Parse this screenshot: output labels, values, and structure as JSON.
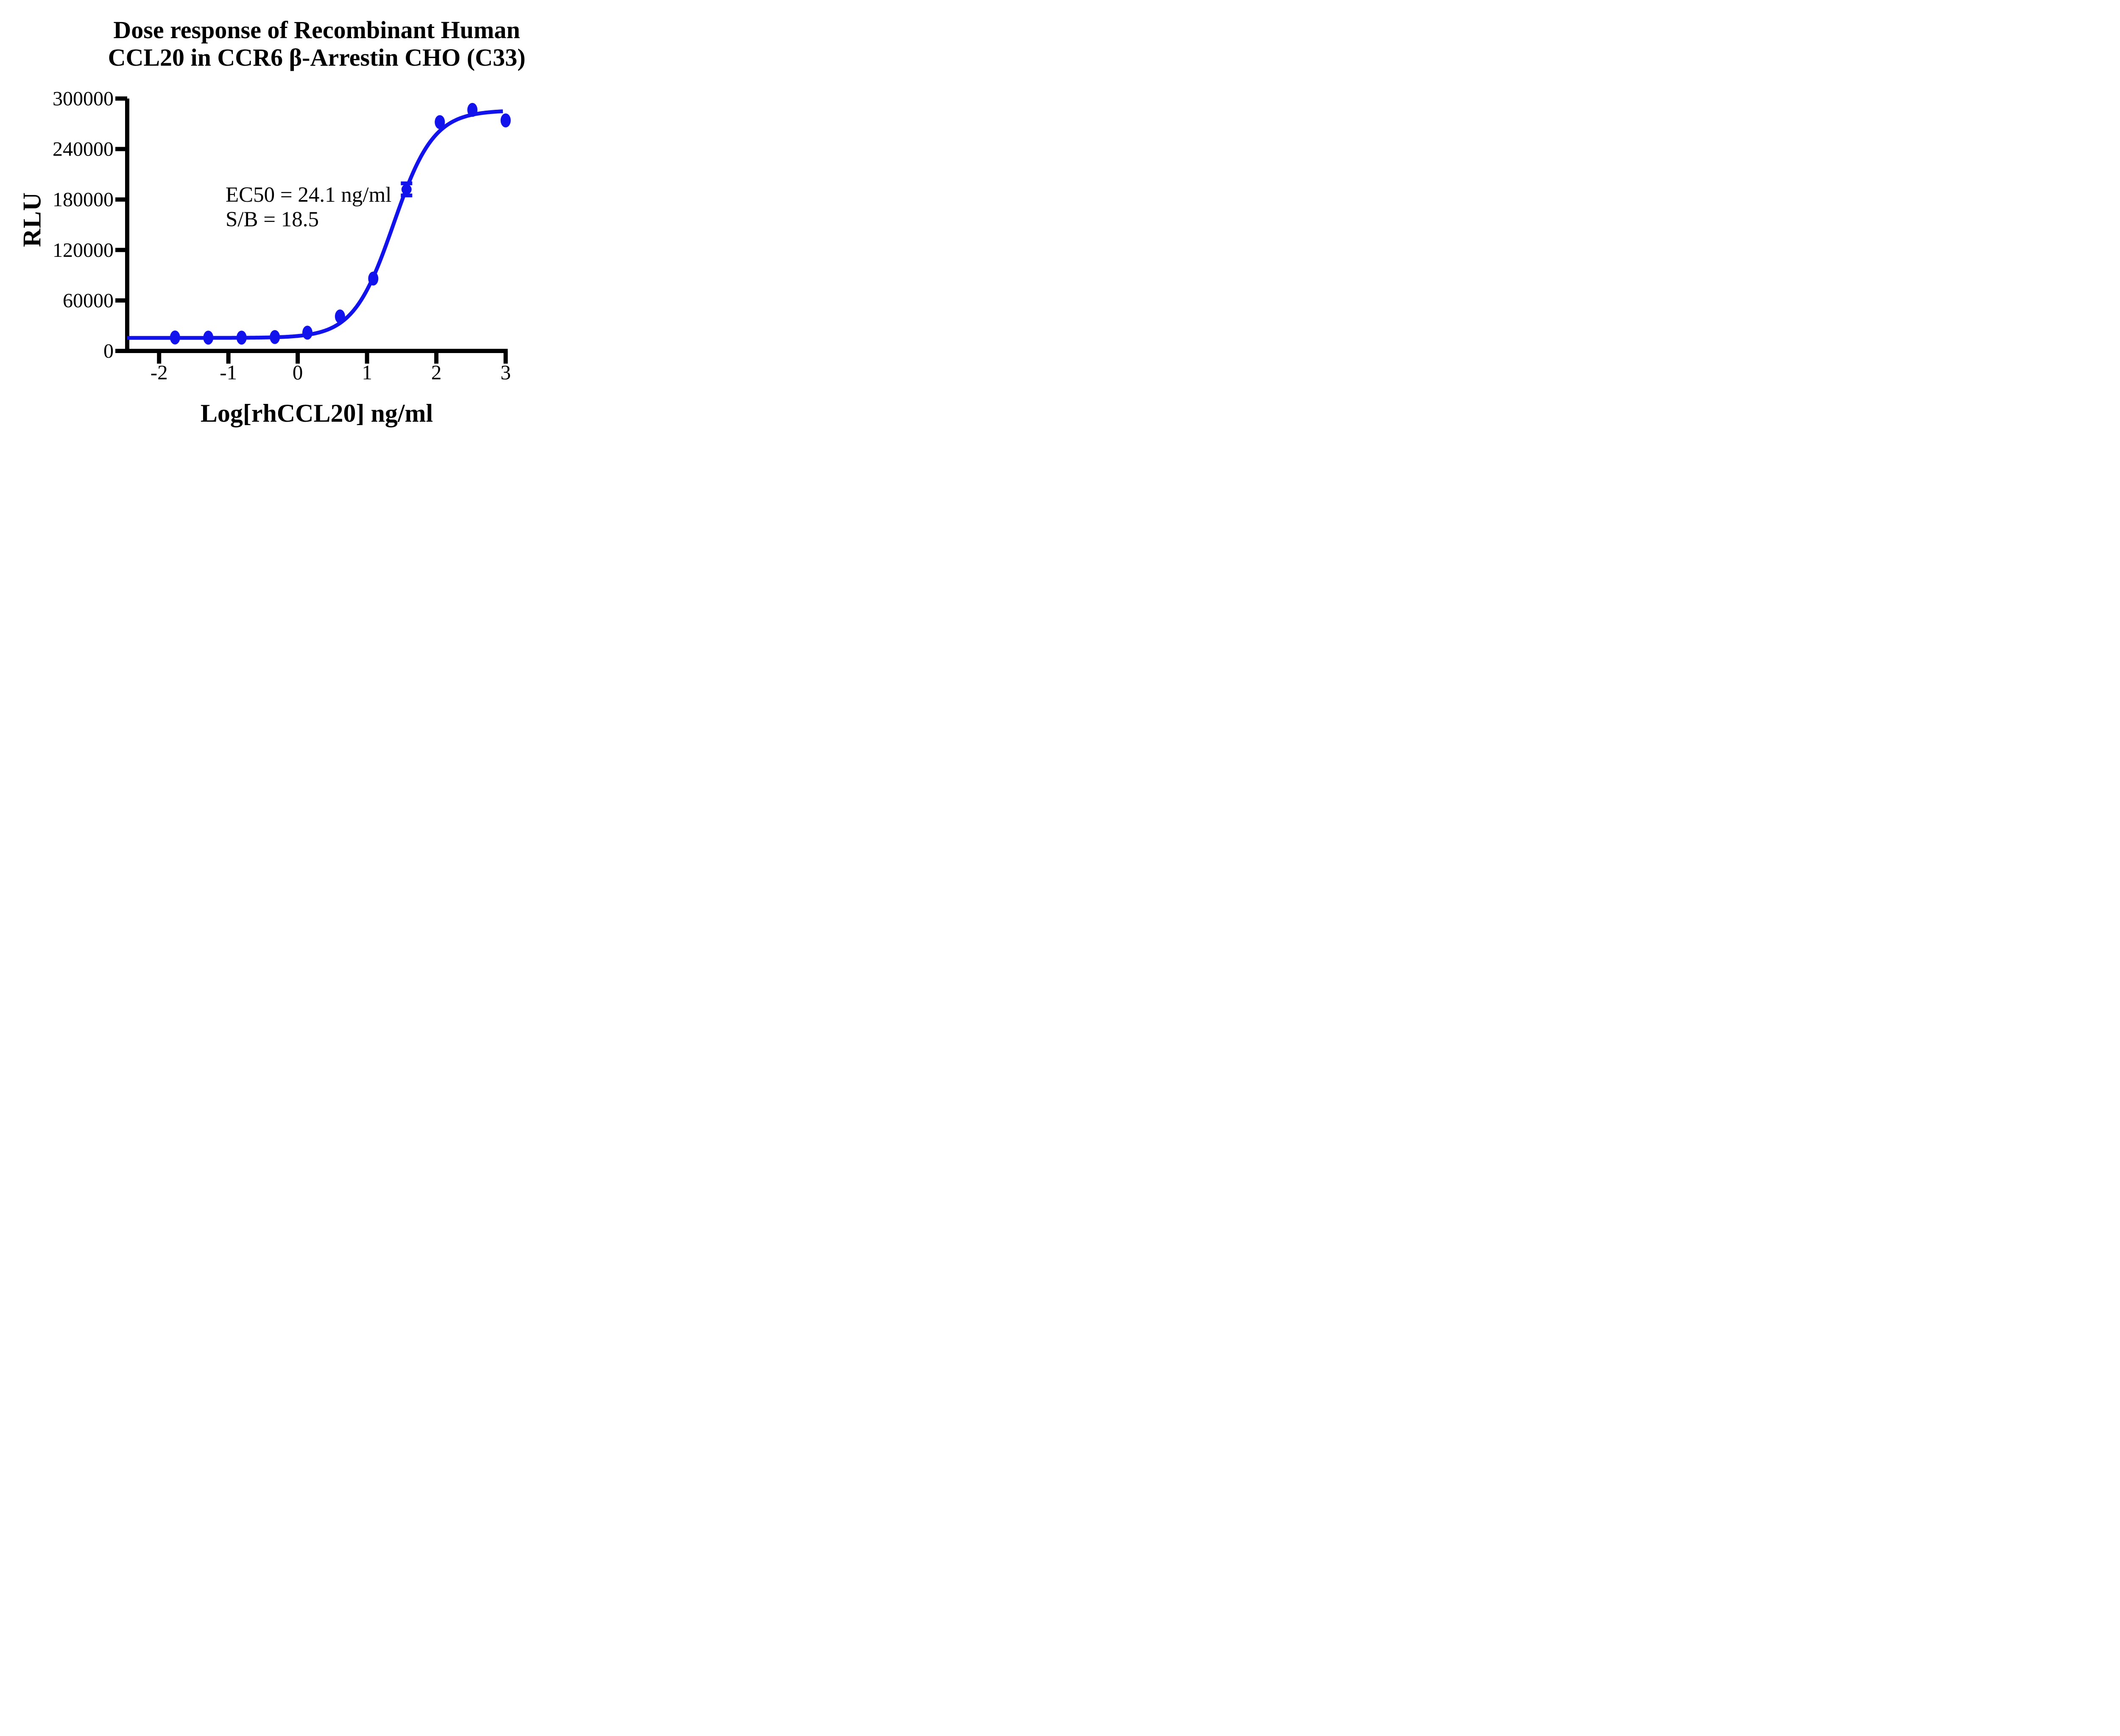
{
  "title": {
    "line1": "Dose response of Recombinant Human",
    "line2": "CCL20 in CCR6 β-Arrestin CHO (C33)"
  },
  "axes": {
    "x_label": "Log[rhCCL20] ng/ml",
    "y_label": "RLU"
  },
  "annotation": {
    "ec50_text": "EC50 = 24.1 ng/ml",
    "sb_text": "S/B = 18.5"
  },
  "colors": {
    "curve": "#1212EC",
    "axis": "#000000",
    "text": "#000000",
    "background": "#FFFFFF"
  },
  "chart_data": {
    "type": "scatter",
    "title": "Dose response of Recombinant Human CCL20 in CCR6 β-Arrestin CHO (C33)",
    "xlabel": "Log[rhCCL20] ng/ml",
    "ylabel": "RLU",
    "x_ticks": [
      -2,
      -1,
      0,
      1,
      2,
      3
    ],
    "y_ticks": [
      0,
      60000,
      120000,
      180000,
      240000,
      300000
    ],
    "xlim": [
      -2.46,
      3.03
    ],
    "ylim": [
      0,
      300000
    ],
    "grid": false,
    "legend": "none",
    "points": [
      {
        "x": -1.77,
        "y": 16000
      },
      {
        "x": -1.29,
        "y": 15800
      },
      {
        "x": -0.81,
        "y": 15800
      },
      {
        "x": -0.33,
        "y": 16500
      },
      {
        "x": 0.14,
        "y": 21700
      },
      {
        "x": 0.61,
        "y": 41000
      },
      {
        "x": 1.09,
        "y": 86000
      },
      {
        "x": 1.57,
        "y": 192000,
        "error": 7200
      },
      {
        "x": 2.05,
        "y": 272000
      },
      {
        "x": 2.52,
        "y": 286500
      },
      {
        "x": 3.0,
        "y": 274000
      }
    ],
    "fit_curve": {
      "model": "4PL",
      "bottom": 15500,
      "top": 286000,
      "log_ec50": 1.382,
      "hill_slope": 1.5,
      "x_start": -2.46,
      "x_end": 2.96
    },
    "ec50_ng_ml": 24.1,
    "s_over_b": 18.5
  }
}
